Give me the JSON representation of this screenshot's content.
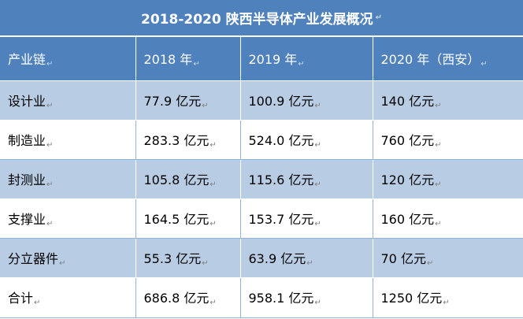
{
  "title": "2018-2020 陕西半导体产业发展概况",
  "paragraph_mark": "↵",
  "header": [
    "产业链",
    "2018 年",
    "2019 年",
    "2020 年（西安）"
  ],
  "rows": [
    [
      "设计业",
      "77.9 亿元",
      "100.9 亿元",
      "140 亿元"
    ],
    [
      "制造业",
      "283.3 亿元",
      "524.0 亿元",
      "760 亿元"
    ],
    [
      "封测业",
      "105.8 亿元",
      "115.6 亿元",
      "120 亿元"
    ],
    [
      "支撑业",
      "164.5 亿元",
      "153.7 亿元",
      "160 亿元"
    ],
    [
      "分立器件",
      "55.3 亿元",
      "63.9 亿元",
      "70 亿元"
    ],
    [
      "合计",
      "686.8 亿元",
      "958.1 亿元",
      "1250 亿元"
    ]
  ],
  "colors": {
    "header_bg": "#4f81bd",
    "band_bg": "#b8cce4",
    "plain_bg": "#ffffff"
  }
}
